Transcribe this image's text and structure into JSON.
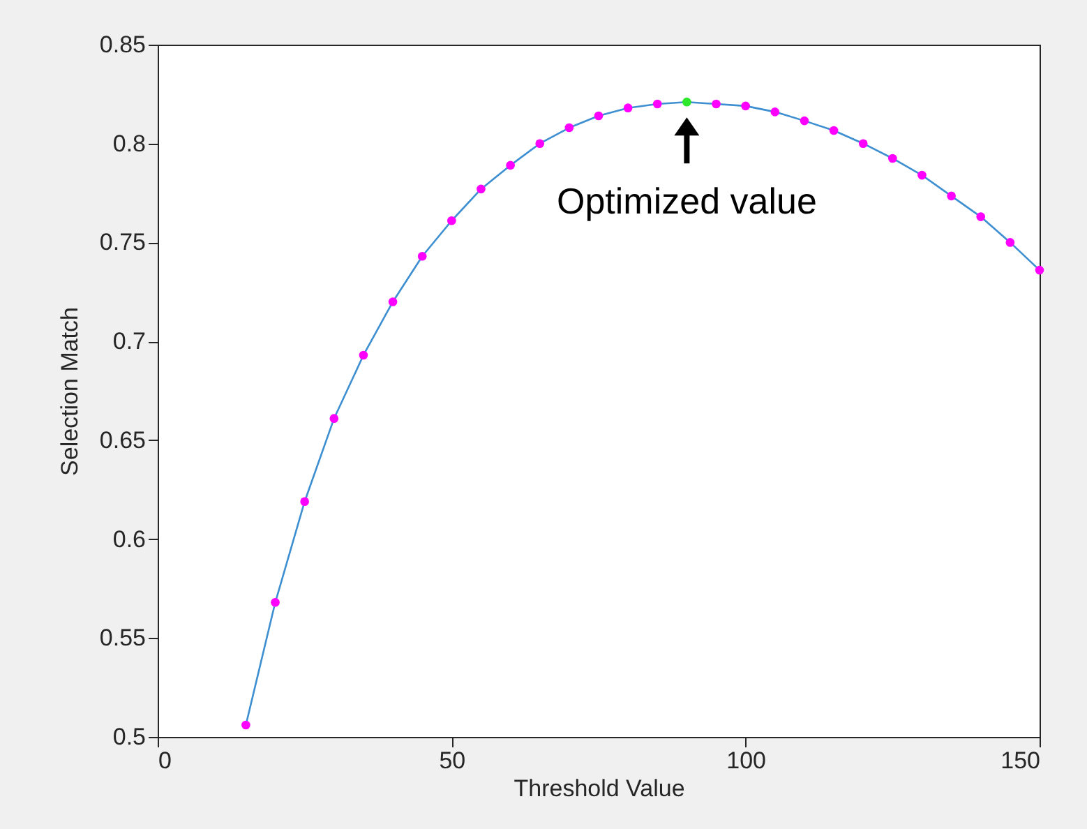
{
  "chart_data": {
    "type": "line",
    "xlabel": "Threshold Value",
    "ylabel": "Selection Match",
    "x": [
      15,
      20,
      25,
      30,
      35,
      40,
      45,
      50,
      55,
      60,
      65,
      70,
      75,
      80,
      85,
      90,
      95,
      100,
      105,
      110,
      115,
      120,
      125,
      130,
      135,
      140,
      145,
      150
    ],
    "series": [
      {
        "color": "#3d8fd1",
        "colors": [
          "#ff00ff",
          "#ff00ff",
          "#ff00ff",
          "#ff00ff",
          "#ff00ff",
          "#ff00ff",
          "#ff00ff",
          "#ff00ff",
          "#ff00ff",
          "#ff00ff",
          "#ff00ff",
          "#ff00ff",
          "#ff00ff",
          "#ff00ff",
          "#ff00ff",
          "#2ee82e",
          "#ff00ff",
          "#ff00ff",
          "#ff00ff",
          "#ff00ff",
          "#ff00ff",
          "#ff00ff",
          "#ff00ff",
          "#ff00ff",
          "#ff00ff",
          "#ff00ff",
          "#ff00ff",
          "#ff00ff"
        ],
        "values": [
          0.506,
          0.568,
          0.619,
          0.661,
          0.693,
          0.72,
          0.743,
          0.761,
          0.777,
          0.789,
          0.8,
          0.808,
          0.814,
          0.818,
          0.82,
          0.821,
          0.82,
          0.819,
          0.816,
          0.8115,
          0.8066,
          0.8,
          0.7925,
          0.784,
          0.7735,
          0.763,
          0.75,
          0.736
        ]
      }
    ],
    "annotations": [
      {
        "text": "Optimized value",
        "x": 90,
        "y": 0.821
      }
    ],
    "xlim": [
      0,
      150
    ],
    "xticks": [
      0,
      50,
      100,
      150
    ],
    "ylim": [
      0.5,
      0.85
    ],
    "yticks": [
      0.5,
      0.55,
      0.6,
      0.65,
      0.7,
      0.75,
      0.8,
      0.85
    ],
    "grid": false,
    "marker": "circle",
    "line_style": "solid"
  }
}
